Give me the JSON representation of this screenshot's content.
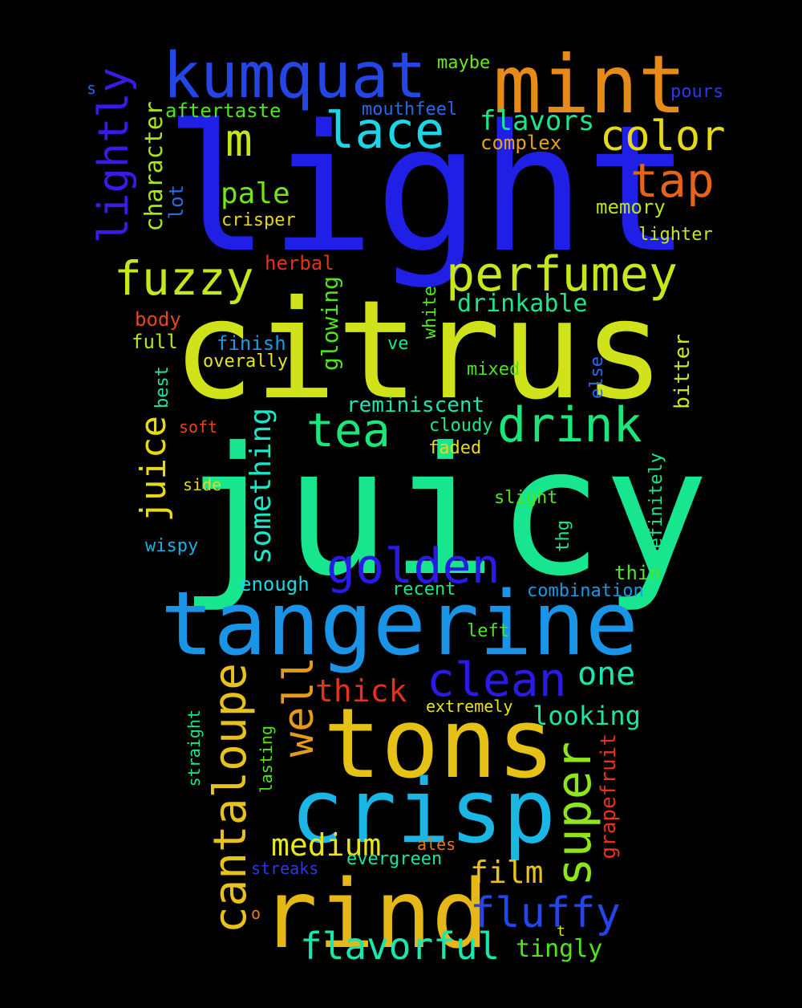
{
  "words": {
    "light": {
      "text": "light",
      "color": "#1f1fe6"
    },
    "citrus": {
      "text": "citrus",
      "color": "#cfe21a"
    },
    "juicy": {
      "text": "juicy",
      "color": "#17e68f"
    },
    "tangerine": {
      "text": "tangerine",
      "color": "#1a94e6"
    },
    "tons": {
      "text": "tons",
      "color": "#e6c217"
    },
    "crisp": {
      "text": "crisp",
      "color": "#1ab6e6"
    },
    "rind": {
      "text": "rind",
      "color": "#e6b817"
    },
    "mint": {
      "text": "mint",
      "color": "#e68a1a"
    },
    "kumquat": {
      "text": "kumquat",
      "color": "#2446e6"
    },
    "lace": {
      "text": "lace",
      "color": "#1ad6e6"
    },
    "m": {
      "text": "m",
      "color": "#c3e61a"
    },
    "color": {
      "text": "color",
      "color": "#e6d81a"
    },
    "tap": {
      "text": "tap",
      "color": "#e6641a"
    },
    "perfumey": {
      "text": "perfumey",
      "color": "#c8e61a"
    },
    "fuzzy": {
      "text": "fuzzy",
      "color": "#c8e61a"
    },
    "drink": {
      "text": "drink",
      "color": "#1ae67a"
    },
    "tea": {
      "text": "tea",
      "color": "#1ae67a"
    },
    "golden": {
      "text": "golden",
      "color": "#2a1ae6"
    },
    "clean": {
      "text": "clean",
      "color": "#2a1ae6"
    },
    "one": {
      "text": "one",
      "color": "#1ae6b0"
    },
    "well": {
      "text": "well",
      "color": "#e69a1a"
    },
    "cantaloupe": {
      "text": "cantaloupe",
      "color": "#e6c21a"
    },
    "super": {
      "text": "super",
      "color": "#8ee61a"
    },
    "fluffy": {
      "text": "fluffy",
      "color": "#2446e6"
    },
    "flavorful": {
      "text": "flavorful",
      "color": "#1ae6b0"
    },
    "lightly": {
      "text": "lightly",
      "color": "#3a1ae6"
    },
    "juice": {
      "text": "juice",
      "color": "#e6d81a"
    },
    "something": {
      "text": "something",
      "color": "#1ae6c8"
    },
    "flavors": {
      "text": "flavors",
      "color": "#1ae68a"
    },
    "pale": {
      "text": "pale",
      "color": "#6ee61a"
    },
    "thick": {
      "text": "thick",
      "color": "#e6321a"
    },
    "medium": {
      "text": "medium",
      "color": "#e6e61a"
    },
    "film": {
      "text": "film",
      "color": "#e6c21a"
    },
    "looking": {
      "text": "looking",
      "color": "#1ae6a0"
    },
    "drinkable": {
      "text": "drinkable",
      "color": "#1ae68a"
    },
    "reminiscent": {
      "text": "reminiscent",
      "color": "#1ae6b0"
    },
    "aftertaste": {
      "text": "aftertaste",
      "color": "#4ee61a"
    },
    "character": {
      "text": "character",
      "color": "#a6e61a"
    },
    "mouthfeel": {
      "text": "mouthfeel",
      "color": "#2a6ae6"
    },
    "complex": {
      "text": "complex",
      "color": "#e6a21a"
    },
    "maybe": {
      "text": "maybe",
      "color": "#6ee61a"
    },
    "pours": {
      "text": "pours",
      "color": "#2a3ae6"
    },
    "s": {
      "text": "s",
      "color": "#1a6ae6"
    },
    "lot": {
      "text": "lot",
      "color": "#2a6ae6"
    },
    "crisper": {
      "text": "crisper",
      "color": "#e6d81a"
    },
    "memory": {
      "text": "memory",
      "color": "#b6e61a"
    },
    "lighter": {
      "text": "lighter",
      "color": "#c8e61a"
    },
    "herbal": {
      "text": "herbal",
      "color": "#e6321a"
    },
    "body": {
      "text": "body",
      "color": "#e6461a"
    },
    "full": {
      "text": "full",
      "color": "#b6e61a"
    },
    "finish": {
      "text": "finish",
      "color": "#1a9ae6"
    },
    "overally": {
      "text": "overally",
      "color": "#e6e61a"
    },
    "glowing": {
      "text": "glowing",
      "color": "#4ee61a"
    },
    "white": {
      "text": "white",
      "color": "#4ee61a"
    },
    "ve": {
      "text": "ve",
      "color": "#1ae68a"
    },
    "mixed": {
      "text": "mixed",
      "color": "#4ee61a"
    },
    "else": {
      "text": "else",
      "color": "#2a6ae6"
    },
    "bitter": {
      "text": "bitter",
      "color": "#c8e61a"
    },
    "best": {
      "text": "best",
      "color": "#1ae6a0"
    },
    "soft": {
      "text": "soft",
      "color": "#e6461a"
    },
    "cloudy": {
      "text": "cloudy",
      "color": "#1ae68a"
    },
    "faded": {
      "text": "faded",
      "color": "#e6d81a"
    },
    "side": {
      "text": "side",
      "color": "#e6d81a"
    },
    "slight": {
      "text": "slight",
      "color": "#4ee61a"
    },
    "wispy": {
      "text": "wispy",
      "color": "#1ab0e6"
    },
    "thg": {
      "text": "thg",
      "color": "#1ae68a"
    },
    "definitely": {
      "text": "definitely",
      "color": "#1ae68a"
    },
    "thin": {
      "text": "thin",
      "color": "#4ee61a"
    },
    "enough": {
      "text": "enough",
      "color": "#1ad6e6"
    },
    "recent": {
      "text": "recent",
      "color": "#1ae68a"
    },
    "combination": {
      "text": "combination",
      "color": "#1a9ae6"
    },
    "left": {
      "text": "left",
      "color": "#4ee61a"
    },
    "extremely": {
      "text": "extremely",
      "color": "#e6e61a"
    },
    "straight": {
      "text": "straight",
      "color": "#1ae68a"
    },
    "lasting": {
      "text": "lasting",
      "color": "#4ee61a"
    },
    "grapefruit": {
      "text": "grapefruit",
      "color": "#e6321a"
    },
    "streaks": {
      "text": "streaks",
      "color": "#2a3ae6"
    },
    "evergreen": {
      "text": "evergreen",
      "color": "#1ae6a0"
    },
    "ales": {
      "text": "ales",
      "color": "#e67a1a"
    },
    "o": {
      "text": "o",
      "color": "#e67a1a"
    },
    "t": {
      "text": "t",
      "color": "#e6e61a"
    },
    "tingly": {
      "text": "tingly",
      "color": "#4ee61a"
    }
  }
}
